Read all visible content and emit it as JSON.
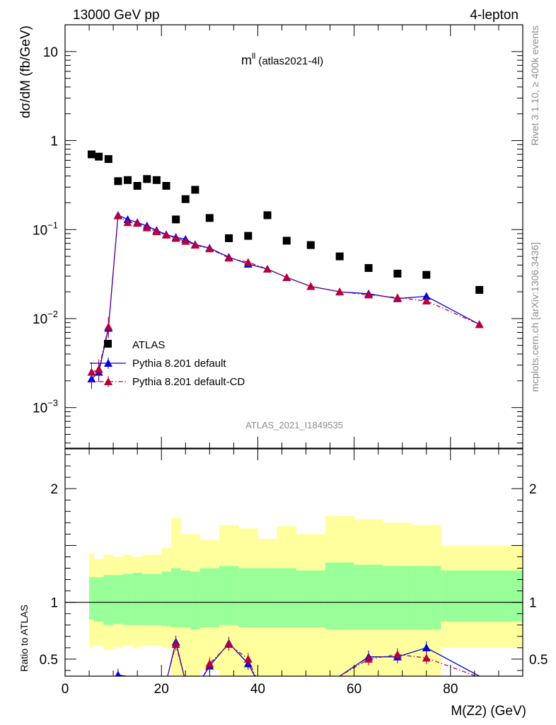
{
  "header": {
    "left_label": "13000 GeV pp",
    "right_label": "4-lepton",
    "side_label_top": "Rivet 3.1.10, ≥ 400k events",
    "side_label_bottom": "mcplots.cern.ch [arXiv:1306.3436]"
  },
  "chart_data": [
    {
      "type": "scatter",
      "title_main": "m",
      "title_sup": "ll",
      "title_suffix": "(atlas2021-4l)",
      "watermark": "ATLAS_2021_I1849535",
      "ylabel": "dσ/dM (fb/GeV)",
      "yscale": "log",
      "ylim": [
        0.00035,
        20
      ],
      "xlim": [
        0,
        95
      ],
      "y_ticks": [
        {
          "base": "10",
          "exp": "",
          "value": 10
        },
        {
          "base": "1",
          "exp": "",
          "value": 1
        },
        {
          "base": "10",
          "exp": "−1",
          "value": 0.1
        },
        {
          "base": "10",
          "exp": "−2",
          "value": 0.01
        },
        {
          "base": "10",
          "exp": "−3",
          "value": 0.001
        }
      ],
      "legend_position": "middle-left",
      "series": [
        {
          "name": "ATLAS",
          "marker": "square",
          "color": "#000000",
          "x": [
            5.5,
            7,
            9,
            11,
            13,
            15,
            17,
            19,
            21,
            23,
            25,
            27,
            30,
            34,
            38,
            42,
            46,
            51,
            57,
            63,
            69,
            75,
            86
          ],
          "y": [
            0.7,
            0.66,
            0.62,
            0.35,
            0.36,
            0.31,
            0.37,
            0.36,
            0.31,
            0.13,
            0.22,
            0.28,
            0.135,
            0.08,
            0.085,
            0.145,
            0.075,
            0.067,
            0.05,
            0.037,
            0.032,
            0.031,
            0.021
          ]
        },
        {
          "name": "Pythia 8.201 default",
          "marker": "triangle",
          "color": "#0000dd",
          "line": "solid",
          "x": [
            5.5,
            7,
            9,
            11,
            13,
            15,
            17,
            19,
            21,
            23,
            25,
            27,
            30,
            34,
            38,
            42,
            46,
            51,
            57,
            63,
            69,
            75,
            86
          ],
          "y": [
            0.0021,
            0.0025,
            0.0078,
            0.145,
            0.13,
            0.12,
            0.11,
            0.098,
            0.088,
            0.082,
            0.078,
            0.068,
            0.062,
            0.049,
            0.041,
            0.036,
            0.029,
            0.023,
            0.02,
            0.019,
            0.0168,
            0.0178,
            0.0086
          ]
        },
        {
          "name": "Pythia 8.201 default-CD",
          "marker": "triangle",
          "color": "#b8003a",
          "line": "dash-dot",
          "x": [
            5.5,
            7,
            9,
            11,
            13,
            15,
            17,
            19,
            21,
            23,
            25,
            27,
            30,
            34,
            38,
            42,
            46,
            51,
            57,
            63,
            69,
            75,
            86
          ],
          "y": [
            0.0025,
            0.0027,
            0.0081,
            0.143,
            0.12,
            0.118,
            0.105,
            0.095,
            0.087,
            0.08,
            0.074,
            0.067,
            0.061,
            0.048,
            0.043,
            0.036,
            0.029,
            0.023,
            0.02,
            0.0185,
            0.0172,
            0.0158,
            0.0086
          ]
        }
      ]
    },
    {
      "type": "area",
      "ylabel": "Ratio to ATLAS",
      "xlabel": "M(Z2) (GeV)",
      "xlim": [
        0,
        95
      ],
      "ylim": [
        0.35,
        2.35
      ],
      "x_ticks": [
        0,
        20,
        40,
        60,
        80
      ],
      "y_ticks": [
        0.5,
        1,
        2
      ],
      "reference_line": 1,
      "bands": {
        "bin_edges": [
          5,
          6,
          8,
          10,
          12,
          14,
          16,
          18,
          20,
          22,
          24,
          26,
          28,
          32,
          36,
          40,
          44,
          48,
          54,
          60,
          66,
          72,
          78,
          95
        ],
        "yellow_low": [
          0.6,
          0.62,
          0.58,
          0.6,
          0.62,
          0.6,
          0.62,
          0.62,
          0.6,
          0.2,
          0.3,
          0.3,
          0.4,
          0.2,
          0.3,
          0.3,
          0.2,
          0.35,
          0.1,
          0.3,
          0.3,
          0.3,
          0.6
        ],
        "yellow_high": [
          1.43,
          1.38,
          1.42,
          1.4,
          1.42,
          1.4,
          1.42,
          1.42,
          1.48,
          1.74,
          1.6,
          1.6,
          1.55,
          1.68,
          1.65,
          1.56,
          1.67,
          1.6,
          1.76,
          1.73,
          1.7,
          1.68,
          1.5
        ],
        "green_low": [
          0.85,
          0.83,
          0.8,
          0.81,
          0.8,
          0.8,
          0.8,
          0.8,
          0.79,
          0.78,
          0.78,
          0.76,
          0.78,
          0.8,
          0.78,
          0.78,
          0.78,
          0.78,
          0.76,
          0.76,
          0.76,
          0.76,
          0.83
        ],
        "green_high": [
          1.22,
          1.22,
          1.24,
          1.24,
          1.25,
          1.26,
          1.25,
          1.25,
          1.27,
          1.3,
          1.28,
          1.27,
          1.3,
          1.32,
          1.3,
          1.3,
          1.3,
          1.28,
          1.35,
          1.33,
          1.32,
          1.32,
          1.28
        ]
      },
      "series": [
        {
          "name": "Pythia 8.201 default",
          "color": "#0000dd",
          "line": "solid",
          "x": [
            11,
            21,
            23,
            25,
            28,
            30,
            34,
            38,
            40,
            57,
            63,
            69,
            75,
            86
          ],
          "y": [
            0.36,
            0.3,
            0.65,
            0.3,
            0.3,
            0.44,
            0.64,
            0.46,
            0.3,
            0.35,
            0.52,
            0.52,
            0.6,
            0.35
          ]
        },
        {
          "name": "Pythia 8.201 default-CD",
          "color": "#b8003a",
          "line": "dash-dot",
          "x": [
            11,
            21,
            23,
            25,
            28,
            30,
            34,
            38,
            40,
            57,
            63,
            69,
            75,
            86
          ],
          "y": [
            0.34,
            0.3,
            0.63,
            0.3,
            0.3,
            0.46,
            0.63,
            0.5,
            0.3,
            0.35,
            0.5,
            0.54,
            0.51,
            0.34
          ]
        }
      ]
    }
  ]
}
